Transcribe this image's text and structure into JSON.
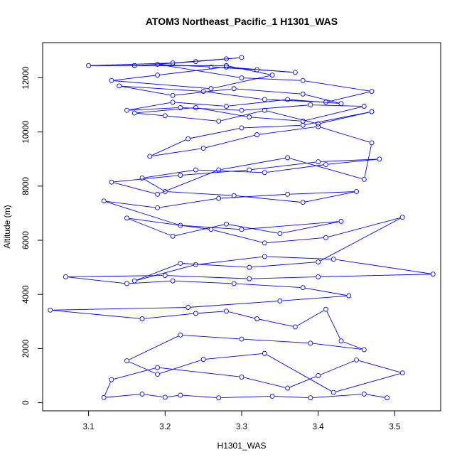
{
  "chart_data": {
    "type": "scatter",
    "title": "ATOM3 Northeast_Pacific_1 H1301_WAS",
    "xlabel": "H1301_WAS",
    "ylabel": "Altitude (m)",
    "xlim": [
      3.04,
      3.56
    ],
    "ylim": [
      -300,
      13300
    ],
    "xticks": [
      "3.1",
      "3.2",
      "3.3",
      "3.4",
      "3.5"
    ],
    "yticks": [
      "0",
      "2000",
      "4000",
      "6000",
      "8000",
      "10000",
      "12000"
    ],
    "grid": false,
    "series_color": "#0000ff",
    "marker": "open-circle",
    "connected": true,
    "series": [
      {
        "x": [
          3.49,
          3.46,
          3.39,
          3.34,
          3.27,
          3.22,
          3.2,
          3.17,
          3.12,
          3.13,
          3.19,
          3.3,
          3.36,
          3.4,
          3.45,
          3.51,
          3.42,
          3.33,
          3.25,
          3.19,
          3.15,
          3.22,
          3.3,
          3.39,
          3.46,
          3.43,
          3.41,
          3.37,
          3.32,
          3.28,
          3.24,
          3.17,
          3.05,
          3.23,
          3.35,
          3.44,
          3.38,
          3.29,
          3.21,
          3.15,
          3.07,
          3.2,
          3.31,
          3.4,
          3.55,
          3.42,
          3.33,
          3.24,
          3.16,
          3.22,
          3.31,
          3.4,
          3.51,
          3.41,
          3.33,
          3.26,
          3.15,
          3.21,
          3.28,
          3.35,
          3.43,
          3.3,
          3.22,
          3.12,
          3.19,
          3.27,
          3.36,
          3.45,
          3.38,
          3.29,
          3.2,
          3.17,
          3.24,
          3.33,
          3.41,
          3.48,
          3.4,
          3.31,
          3.22,
          3.13,
          3.19,
          3.27,
          3.36,
          3.46,
          3.47,
          3.4,
          3.32,
          3.25,
          3.18,
          3.23,
          3.3,
          3.38,
          3.47,
          3.4,
          3.33,
          3.27,
          3.2,
          3.16,
          3.24,
          3.31,
          3.38,
          3.46,
          3.39,
          3.3,
          3.22,
          3.15,
          3.21,
          3.28,
          3.36,
          3.43,
          3.38,
          3.29,
          3.21,
          3.14,
          3.25,
          3.33,
          3.41,
          3.47,
          3.38,
          3.3,
          3.19,
          3.26,
          3.32,
          3.37,
          3.28,
          3.19,
          3.13,
          3.26,
          3.34,
          3.28,
          3.1,
          3.21,
          3.28,
          3.3,
          3.24,
          3.16
        ],
        "y": [
          180,
          320,
          180,
          240,
          180,
          280,
          200,
          320,
          190,
          850,
          1300,
          950,
          540,
          1000,
          1580,
          1100,
          380,
          1820,
          1600,
          1050,
          1550,
          2500,
          2350,
          2200,
          1960,
          2280,
          3450,
          2800,
          3100,
          3380,
          3300,
          3100,
          3420,
          3520,
          3760,
          3950,
          4250,
          4400,
          4500,
          4400,
          4650,
          4700,
          4580,
          4650,
          4750,
          5300,
          5400,
          5100,
          4500,
          5150,
          5000,
          5200,
          6850,
          6100,
          5900,
          6400,
          6820,
          6150,
          6600,
          6250,
          6700,
          6400,
          6550,
          7450,
          7200,
          7550,
          7700,
          7800,
          7400,
          7650,
          7800,
          8300,
          8600,
          8500,
          8800,
          9000,
          8900,
          8600,
          8400,
          8150,
          7700,
          8600,
          9050,
          8250,
          9600,
          10200,
          9900,
          9400,
          9100,
          9750,
          10150,
          10250,
          10750,
          10300,
          10800,
          10400,
          10600,
          10700,
          10900,
          10550,
          10400,
          10950,
          11000,
          10800,
          10900,
          10800,
          11100,
          10950,
          11200,
          11050,
          11400,
          11600,
          11350,
          11700,
          11500,
          11200,
          11100,
          11500,
          11900,
          12000,
          12500,
          12400,
          12300,
          12200,
          12400,
          12100,
          11900,
          11600,
          12100,
          12450,
          12450,
          12550,
          12700,
          12750,
          12600,
          12450
        ]
      }
    ]
  }
}
